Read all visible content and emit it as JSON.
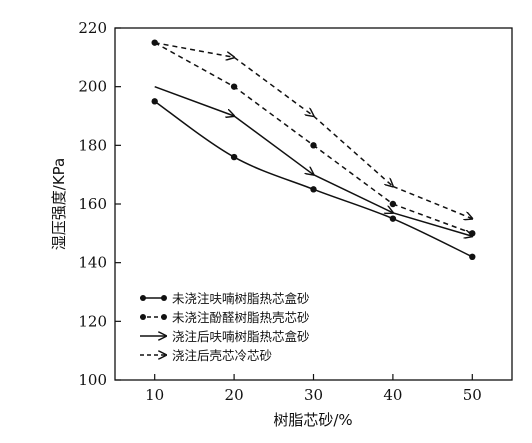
{
  "chart_data": {
    "type": "line",
    "xlabel": "树脂芯砂/%",
    "ylabel": "湿压强度/KPa",
    "xlim": [
      5,
      55
    ],
    "ylim": [
      100,
      220
    ],
    "x_ticks": [
      "10",
      "20",
      "30",
      "40",
      "50"
    ],
    "y_ticks": [
      "100",
      "120",
      "140",
      "160",
      "180",
      "200",
      "220"
    ],
    "grid": false,
    "legend_position": "bottom-left",
    "x": [
      10,
      20,
      30,
      40,
      50
    ],
    "series": [
      {
        "name": "未浇注呋喃树脂热芯盒砂",
        "values": [
          195,
          176,
          165,
          155,
          142
        ],
        "line": "solid",
        "marker": "dot",
        "smooth": true
      },
      {
        "name": "未浇注酚醛树脂热壳芯砂",
        "values": [
          215,
          200,
          180,
          160,
          150
        ],
        "line": "dashed",
        "marker": "dot",
        "smooth": false
      },
      {
        "name": "浇注后呋喃树脂热芯盒砂",
        "values": [
          200,
          190,
          170,
          157,
          149
        ],
        "line": "solid",
        "marker": "arrow",
        "smooth": false
      },
      {
        "name": "浇注后壳芯冷芯砂",
        "values": [
          215,
          210,
          190,
          166,
          155
        ],
        "line": "dashed",
        "marker": "arrow",
        "smooth": false
      }
    ]
  }
}
